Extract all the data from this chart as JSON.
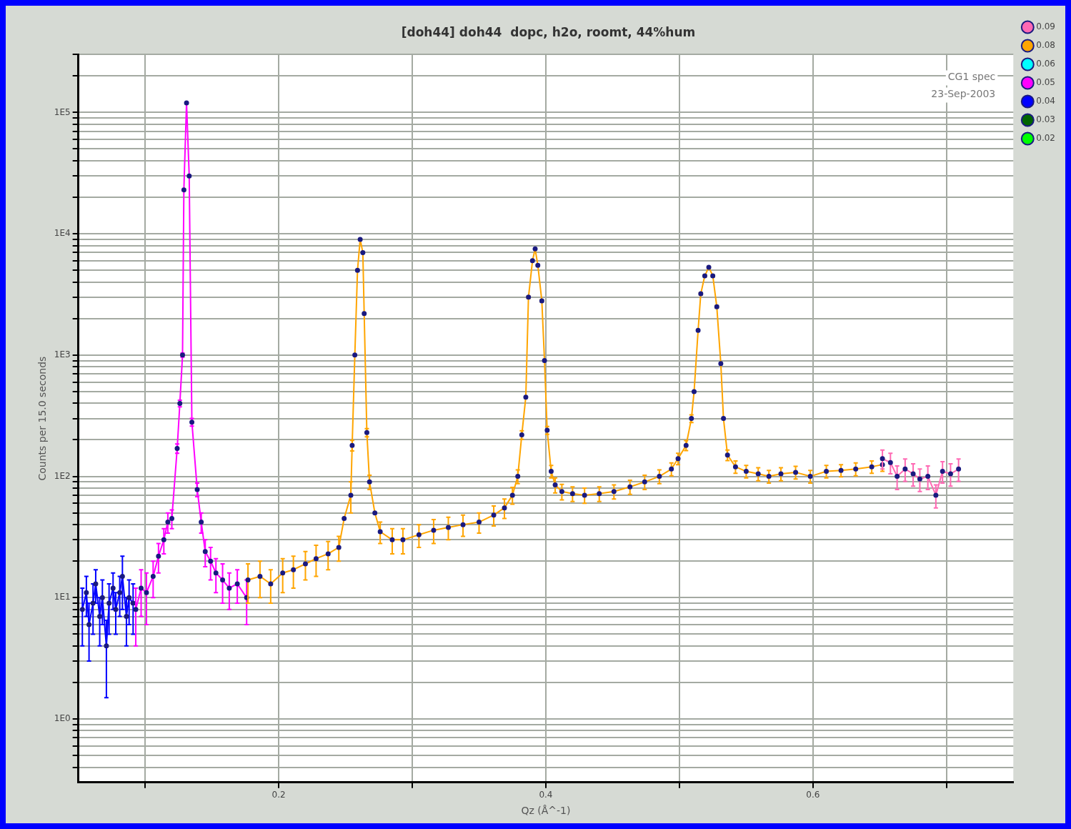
{
  "chart_data": {
    "type": "line",
    "title": "[doh44] doh44  dopc, h2o, roomt, 44%hum",
    "xlabel": "Qz (Å^-1)",
    "ylabel": "Counts per 15.0 seconds",
    "annotations": [
      "CG1 spec",
      "23-Sep-2003"
    ],
    "log": "y",
    "grid": true,
    "legend": "right",
    "marker": "circle",
    "line_style": "solid",
    "xlim": [
      0.05,
      0.75
    ],
    "xticks": [
      {
        "value": 0.1,
        "label": null
      },
      0.2,
      {
        "value": 0.3,
        "label": null
      },
      0.4,
      {
        "value": 0.5,
        "label": null
      },
      0.6,
      {
        "value": 0.7,
        "label": null
      }
    ],
    "ylim": [
      0.3,
      300000
    ],
    "yticks": [
      {
        "value": 0.4,
        "label": null
      },
      {
        "value": 0.5,
        "label": null
      },
      {
        "value": 0.6,
        "label": null
      },
      {
        "value": 0.7,
        "label": null
      },
      {
        "value": 0.8,
        "label": null
      },
      {
        "value": 0.9,
        "label": null
      },
      {
        "value": 1,
        "label": "1E0"
      },
      {
        "value": 2,
        "label": null
      },
      {
        "value": 3,
        "label": null
      },
      {
        "value": 4,
        "label": null
      },
      {
        "value": 5,
        "label": null
      },
      {
        "value": 6,
        "label": null
      },
      {
        "value": 7,
        "label": null
      },
      {
        "value": 8,
        "label": null
      },
      {
        "value": 9,
        "label": null
      },
      {
        "value": 10,
        "label": "1E1"
      },
      {
        "value": 20,
        "label": null
      },
      {
        "value": 30,
        "label": null
      },
      {
        "value": 40,
        "label": null
      },
      {
        "value": 50,
        "label": null
      },
      {
        "value": 60,
        "label": null
      },
      {
        "value": 70,
        "label": null
      },
      {
        "value": 80,
        "label": null
      },
      {
        "value": 90,
        "label": null
      },
      {
        "value": 100,
        "label": "1E2"
      },
      {
        "value": 200,
        "label": null
      },
      {
        "value": 300,
        "label": null
      },
      {
        "value": 400,
        "label": null
      },
      {
        "value": 500,
        "label": null
      },
      {
        "value": 600,
        "label": null
      },
      {
        "value": 700,
        "label": null
      },
      {
        "value": 800,
        "label": null
      },
      {
        "value": 900,
        "label": null
      },
      {
        "value": 1000,
        "label": "1E3"
      },
      {
        "value": 2000,
        "label": null
      },
      {
        "value": 3000,
        "label": null
      },
      {
        "value": 4000,
        "label": null
      },
      {
        "value": 5000,
        "label": null
      },
      {
        "value": 6000,
        "label": null
      },
      {
        "value": 7000,
        "label": null
      },
      {
        "value": 8000,
        "label": null
      },
      {
        "value": 9000,
        "label": null
      },
      {
        "value": 10000,
        "label": "1E4"
      },
      {
        "value": 20000,
        "label": null
      },
      {
        "value": 30000,
        "label": null
      },
      {
        "value": 40000,
        "label": null
      },
      {
        "value": 50000,
        "label": null
      },
      {
        "value": 60000,
        "label": null
      },
      {
        "value": 70000,
        "label": null
      },
      {
        "value": 80000,
        "label": null
      },
      {
        "value": 90000,
        "label": null
      },
      {
        "value": 100000,
        "label": "1E5"
      },
      {
        "value": 200000,
        "label": null
      },
      {
        "value": 300000,
        "label": null
      }
    ],
    "series": [
      {
        "name": "0.09",
        "color": "#ff69b4",
        "x": [
          0.652,
          0.658,
          0.663,
          0.669,
          0.675,
          0.68,
          0.686,
          0.692,
          0.697,
          0.703,
          0.709
        ],
        "values": [
          140,
          130,
          100,
          115,
          105,
          95,
          100,
          70,
          110,
          105,
          115
        ],
        "errors": [
          25,
          25,
          22,
          24,
          22,
          20,
          22,
          15,
          22,
          22,
          24
        ]
      },
      {
        "name": "0.08",
        "color": "#ffa500",
        "x": [
          0.177,
          0.186,
          0.194,
          0.203,
          0.211,
          0.22,
          0.228,
          0.237,
          0.245,
          0.249,
          0.254,
          0.255,
          0.257,
          0.259,
          0.261,
          0.263,
          0.264,
          0.266,
          0.268,
          0.272,
          0.276,
          0.285,
          0.293,
          0.305,
          0.316,
          0.327,
          0.338,
          0.35,
          0.361,
          0.369,
          0.375,
          0.379,
          0.382,
          0.385,
          0.387,
          0.39,
          0.392,
          0.394,
          0.397,
          0.399,
          0.401,
          0.404,
          0.407,
          0.412,
          0.42,
          0.429,
          0.44,
          0.451,
          0.463,
          0.474,
          0.485,
          0.494,
          0.499,
          0.505,
          0.509,
          0.511,
          0.514,
          0.516,
          0.519,
          0.522,
          0.525,
          0.528,
          0.531,
          0.533,
          0.536,
          0.542,
          0.55,
          0.559,
          0.567,
          0.576,
          0.587,
          0.598,
          0.61,
          0.621,
          0.632,
          0.644,
          0.652
        ],
        "values": [
          14,
          15,
          13,
          16,
          17,
          19,
          21,
          23,
          26,
          45,
          70,
          180,
          1000,
          5000,
          9000,
          7000,
          2200,
          230,
          90,
          50,
          35,
          30,
          30,
          33,
          36,
          38,
          40,
          42,
          48,
          55,
          70,
          100,
          220,
          450,
          3000,
          6000,
          7500,
          5500,
          2800,
          900,
          240,
          110,
          85,
          75,
          72,
          70,
          72,
          75,
          82,
          90,
          100,
          115,
          140,
          180,
          300,
          500,
          1600,
          3200,
          4500,
          5300,
          4500,
          2500,
          850,
          300,
          150,
          120,
          110,
          105,
          100,
          105,
          108,
          100,
          110,
          112,
          115,
          120,
          125
        ],
        "errors": [
          5,
          5,
          4,
          5,
          5,
          5,
          6,
          6,
          6,
          null,
          20,
          18,
          null,
          90,
          120,
          100,
          null,
          18,
          12,
          null,
          7,
          7,
          7,
          7,
          8,
          8,
          8,
          8,
          9,
          10,
          11,
          13,
          18,
          null,
          65,
          90,
          100,
          85,
          60,
          null,
          18,
          13,
          12,
          11,
          10,
          10,
          10,
          10,
          11,
          12,
          13,
          14,
          15,
          17,
          22,
          null,
          null,
          70,
          80,
          90,
          80,
          60,
          null,
          null,
          15,
          14,
          13,
          13,
          12,
          13,
          13,
          12,
          13,
          13,
          14,
          14,
          15
        ]
      },
      {
        "name": "0.06",
        "color": "#00ffff"
      },
      {
        "name": "0.05",
        "color": "#ff00ff",
        "x": [
          0.093,
          0.097,
          0.101,
          0.106,
          0.11,
          0.114,
          0.117,
          0.12,
          0.124,
          0.126,
          0.128,
          0.129,
          0.131,
          0.133,
          0.135,
          0.139,
          0.142,
          0.145,
          0.149,
          0.153,
          0.158,
          0.163,
          0.169,
          0.176
        ],
        "values": [
          8,
          12,
          11,
          15,
          22,
          30,
          42,
          45,
          170,
          400,
          1000,
          23000,
          120000,
          30000,
          280,
          78,
          42,
          24,
          20,
          16,
          14,
          12,
          13,
          10
        ],
        "errors": [
          4,
          5,
          5,
          5,
          6,
          7,
          8,
          8,
          15,
          25,
          40,
          400,
          1000,
          450,
          20,
          10,
          8,
          6,
          6,
          5,
          5,
          4,
          4,
          4
        ]
      },
      {
        "name": "0.04",
        "color": "#0000ff",
        "x": [
          0.053,
          0.056,
          0.058,
          0.061,
          0.063,
          0.066,
          0.068,
          0.071,
          0.073,
          0.076,
          0.078,
          0.081,
          0.083,
          0.086,
          0.088,
          0.091
        ],
        "values": [
          8,
          11,
          6,
          9,
          13,
          7,
          10,
          4,
          9,
          12,
          8,
          11,
          15,
          7,
          10,
          9
        ],
        "errors": [
          4,
          4,
          3,
          4,
          4,
          3,
          4,
          2.5,
          4,
          4,
          3,
          4,
          7,
          3,
          4,
          4
        ]
      },
      {
        "name": "0.03",
        "color": "#006400"
      },
      {
        "name": "0.02",
        "color": "#00ff00"
      }
    ]
  }
}
